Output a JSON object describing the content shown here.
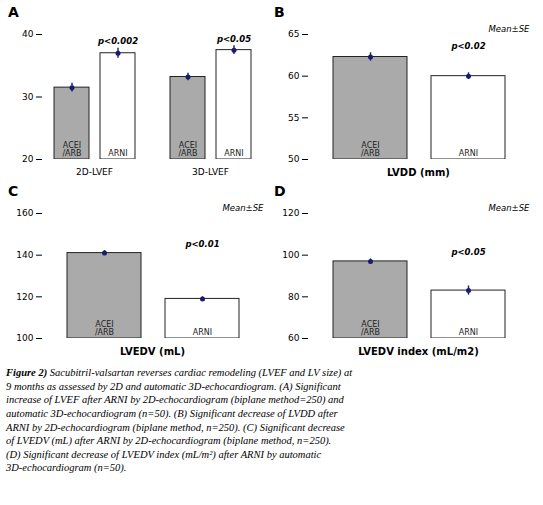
{
  "chart_data": [
    {
      "type": "bar",
      "title": "A",
      "categories": [
        "2D-LVEF",
        "3D-LVEF"
      ],
      "series": [
        {
          "name": "ACEI\n/ARB",
          "color": "#aaaaaa",
          "values": [
            31.5,
            33.2
          ],
          "errors": [
            0.7,
            0.6
          ]
        },
        {
          "name": "ARNI",
          "color": "#ffffff",
          "values": [
            37.0,
            37.5
          ],
          "errors": [
            0.8,
            0.7
          ]
        }
      ],
      "p_values": [
        "p<0.002",
        "p<0.05"
      ],
      "edge_color": "#222222",
      "error_color": "#1a1a6e",
      "ylim": [
        20,
        40
      ],
      "yticks": [
        20,
        30,
        40
      ]
    },
    {
      "type": "bar",
      "title": "B",
      "categories": [
        "ACEI\n/ARB",
        "ARNI"
      ],
      "values": [
        62.3,
        60.0
      ],
      "errors": [
        0.5,
        0.4
      ],
      "colors": [
        "#aaaaaa",
        "#ffffff"
      ],
      "p_value": "p<0.02",
      "note": "Mean±SE",
      "x_label": "LVDD (mm)",
      "edge_color": "#222222",
      "error_color": "#1a1a6e",
      "ylim": [
        50,
        65
      ],
      "yticks": [
        50,
        55,
        60,
        65
      ]
    },
    {
      "type": "bar",
      "title": "C",
      "categories": [
        "ACEI\n/ARB",
        "ARNI"
      ],
      "values": [
        141.0,
        119.0
      ],
      "errors": [
        1.2,
        1.0
      ],
      "colors": [
        "#aaaaaa",
        "#ffffff"
      ],
      "p_value": "p<0.01",
      "note": "Mean±SE",
      "x_label": "LVEDV (mL)",
      "edge_color": "#222222",
      "error_color": "#1a1a6e",
      "ylim": [
        100,
        160
      ],
      "yticks": [
        100,
        120,
        140,
        160
      ]
    },
    {
      "type": "bar",
      "title": "D",
      "categories": [
        "ACEI\n/ARB",
        "ARNI"
      ],
      "values": [
        97.0,
        83.0
      ],
      "errors": [
        1.2,
        2.2
      ],
      "colors": [
        "#aaaaaa",
        "#ffffff"
      ],
      "p_value": "p<0.05",
      "note": "Mean±SE",
      "x_label": "LVEDV index (mL/m2)",
      "edge_color": "#222222",
      "error_color": "#1a1a6e",
      "ylim": [
        60,
        120
      ],
      "yticks": [
        60,
        80,
        100,
        120
      ]
    }
  ],
  "caption_bold": "Figure 2)",
  "caption": " Sacubitril-valsartan reverses cardiac remodeling (LVEF and LV size) at\n9 months as assessed by 2D and automatic 3D-echocardiogram. (A) Significant\nincrease of LVEF after ARNI by 2D-echocardiogram (biplane method=250) and\nautomatic 3D-echocardiogram (n=50). (B) Significant decrease of LVDD after\nARNI by 2D-echocardiogram (biplane method, n=250). (C) Significant decrease\nof LVEDV (mL) after ARNI by 2D-echocardiogram (biplane method, n=250).\n(D) Significant decrease of LVEDV index (mL/m²) after ARNI by automatic\n3D-echocardiogram (n=50)."
}
